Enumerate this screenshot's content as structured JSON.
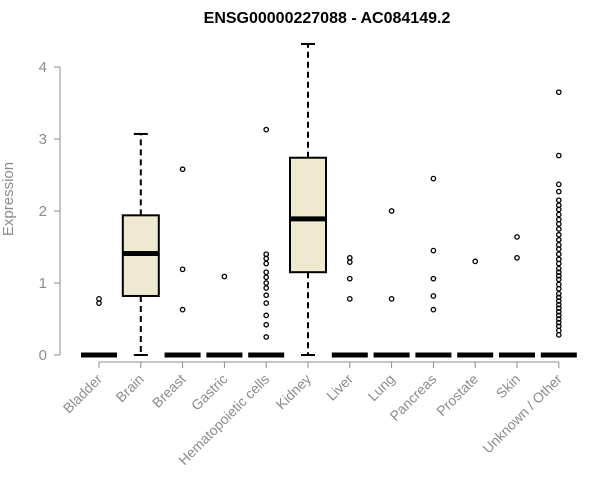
{
  "chart_data": {
    "type": "boxplot",
    "title": "ENSG00000227088 - AC084149.2",
    "xlabel": "",
    "ylabel": "Expression",
    "ylim": [
      0,
      4.35
    ],
    "yticks": [
      0,
      1,
      2,
      3,
      4
    ],
    "ytick_labels": [
      "0",
      "1",
      "2",
      "3",
      "4"
    ],
    "grid": false,
    "box_fill": "#efe9d0",
    "line_color": "#000000",
    "categories": [
      "Bladder",
      "Brain",
      "Breast",
      "Gastric",
      "Hematopoietic cells",
      "Kidney",
      "Liver",
      "Lung",
      "Pancreas",
      "Prostate",
      "Skin",
      "Unknown / Other"
    ],
    "boxes": [
      {
        "category": "Bladder",
        "min": 0,
        "q1": 0,
        "median": 0,
        "q3": 0,
        "max": 0,
        "outliers": [
          0.72,
          0.78
        ]
      },
      {
        "category": "Brain",
        "min": 0,
        "q1": 0.82,
        "median": 1.41,
        "q3": 1.94,
        "max": 3.07,
        "outliers": []
      },
      {
        "category": "Breast",
        "min": 0,
        "q1": 0,
        "median": 0,
        "q3": 0,
        "max": 0,
        "outliers": [
          0.63,
          1.19,
          2.58
        ]
      },
      {
        "category": "Gastric",
        "min": 0,
        "q1": 0,
        "median": 0,
        "q3": 0,
        "max": 0,
        "outliers": [
          1.09
        ]
      },
      {
        "category": "Hematopoietic cells",
        "min": 0,
        "q1": 0,
        "median": 0,
        "q3": 0,
        "max": 0,
        "outliers": [
          0.25,
          0.42,
          0.55,
          0.72,
          0.83,
          0.93,
          1.0,
          1.08,
          1.15,
          1.27,
          1.34,
          1.4,
          3.13
        ]
      },
      {
        "category": "Kidney",
        "min": 0,
        "q1": 1.15,
        "median": 1.89,
        "q3": 2.74,
        "max": 4.32,
        "outliers": []
      },
      {
        "category": "Liver",
        "min": 0,
        "q1": 0,
        "median": 0,
        "q3": 0,
        "max": 0,
        "outliers": [
          0.78,
          1.06,
          1.29,
          1.35
        ]
      },
      {
        "category": "Lung",
        "min": 0,
        "q1": 0,
        "median": 0,
        "q3": 0,
        "max": 0,
        "outliers": [
          0.78,
          2.0
        ]
      },
      {
        "category": "Pancreas",
        "min": 0,
        "q1": 0,
        "median": 0,
        "q3": 0,
        "max": 0,
        "outliers": [
          0.63,
          0.82,
          1.06,
          1.45,
          2.45
        ]
      },
      {
        "category": "Prostate",
        "min": 0,
        "q1": 0,
        "median": 0,
        "q3": 0,
        "max": 0,
        "outliers": [
          1.3
        ]
      },
      {
        "category": "Skin",
        "min": 0,
        "q1": 0,
        "median": 0,
        "q3": 0,
        "max": 0,
        "outliers": [
          1.35,
          1.64
        ]
      },
      {
        "category": "Unknown / Other",
        "min": 0,
        "q1": 0,
        "median": 0,
        "q3": 0,
        "max": 0,
        "outliers": [
          0.28,
          0.34,
          0.4,
          0.45,
          0.5,
          0.55,
          0.6,
          0.65,
          0.7,
          0.75,
          0.8,
          0.85,
          0.92,
          0.98,
          1.05,
          1.1,
          1.15,
          1.2,
          1.27,
          1.33,
          1.4,
          1.47,
          1.53,
          1.6,
          1.67,
          1.75,
          1.82,
          1.88,
          1.95,
          2.02,
          2.08,
          2.15,
          2.27,
          2.37,
          2.77,
          3.65
        ]
      }
    ]
  }
}
